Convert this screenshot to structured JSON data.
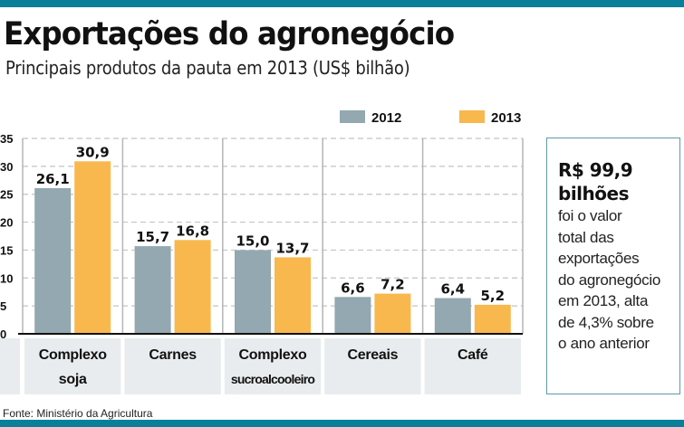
{
  "header": {
    "title": "Exportações do agronegócio",
    "subtitle": "Principais produtos da pauta em 2013 (US$ bilhão)"
  },
  "chart_data": {
    "type": "bar",
    "title": "Exportações do agronegócio",
    "subtitle": "Principais produtos da pauta em 2013 (US$ bilhão)",
    "xlabel": "",
    "ylabel": "",
    "ylim": [
      0,
      35
    ],
    "yticks": [
      0,
      5,
      10,
      15,
      20,
      25,
      30,
      35
    ],
    "ytick_labels": [
      "0",
      "5",
      "10",
      "15",
      "20",
      "25",
      "30",
      "35"
    ],
    "grid": true,
    "legend_position": "top-right",
    "categories": [
      [
        "Complexo",
        "soja"
      ],
      [
        "Carnes"
      ],
      [
        "Complexo",
        "sucroalcooleiro"
      ],
      [
        "Cereais"
      ],
      [
        "Café"
      ]
    ],
    "series": [
      {
        "name": "2012",
        "color": "#93a8b0",
        "values": [
          26.1,
          15.7,
          15.0,
          6.6,
          6.4
        ],
        "labels": [
          "26,1",
          "15,7",
          "15,0",
          "6,6",
          "6,4"
        ]
      },
      {
        "name": "2013",
        "color": "#f8b84e",
        "values": [
          30.9,
          16.8,
          13.7,
          7.2,
          5.2
        ],
        "labels": [
          "30,9",
          "16,8",
          "13,7",
          "7,2",
          "5,2"
        ]
      }
    ]
  },
  "infobox": {
    "headline_1": "R$ 99,9",
    "headline_2": "bilhões",
    "lines": [
      "foi o valor",
      "total das",
      "exportações",
      "do agronegócio",
      "em  2013, alta",
      "de 4,3% sobre",
      "o ano anterior"
    ]
  },
  "footer": {
    "source": "Fonte: Ministério da Agricultura"
  },
  "colors": {
    "accent_bar": "#0a7f99",
    "series_2012": "#93a8b0",
    "series_2013": "#f8b84e",
    "category_bg": "#e8ecee",
    "box_border": "#5e9aa6"
  }
}
